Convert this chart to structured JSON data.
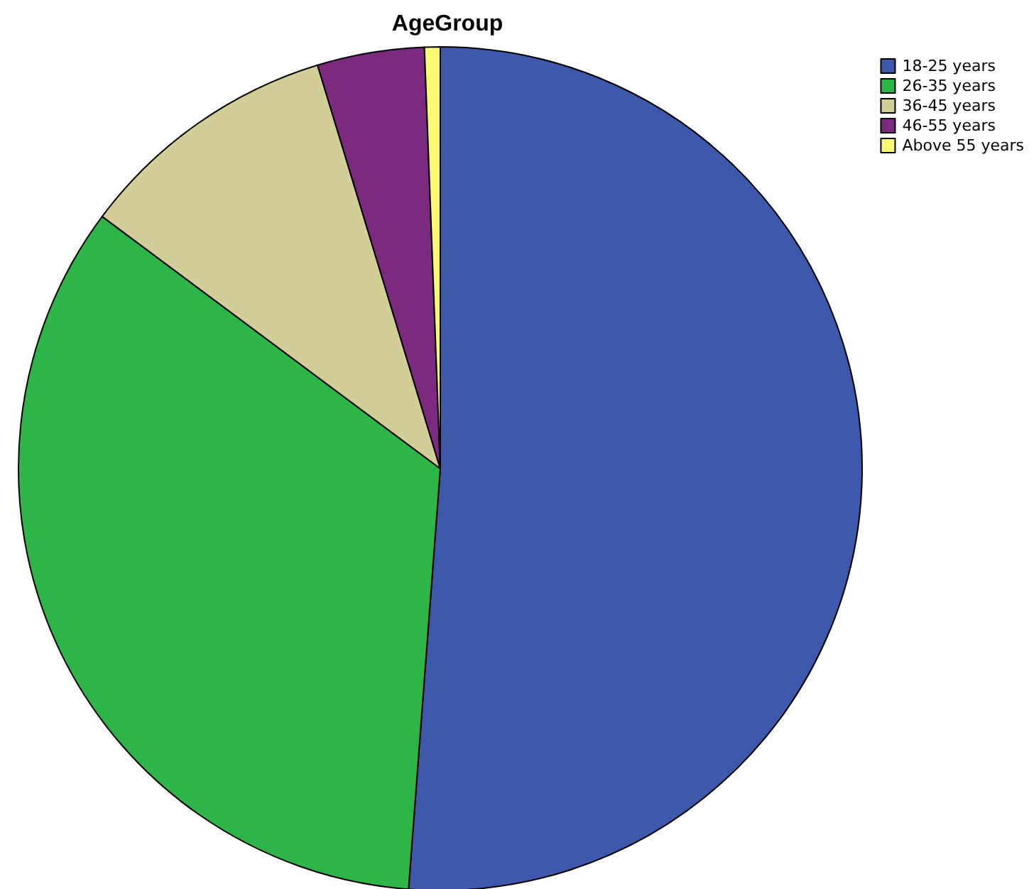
{
  "chart_data": {
    "type": "pie",
    "title": "AgeGroup",
    "categories": [
      "18-25 years",
      "26-35 years",
      "36-45 years",
      "46-55 years",
      "Above 55 years"
    ],
    "values": [
      51.2,
      34.0,
      10.1,
      4.1,
      0.6
    ],
    "colors": [
      "#3e58ac",
      "#2eb548",
      "#d3ce97",
      "#7b2a7f",
      "#fbf873"
    ],
    "legend": "top right"
  }
}
